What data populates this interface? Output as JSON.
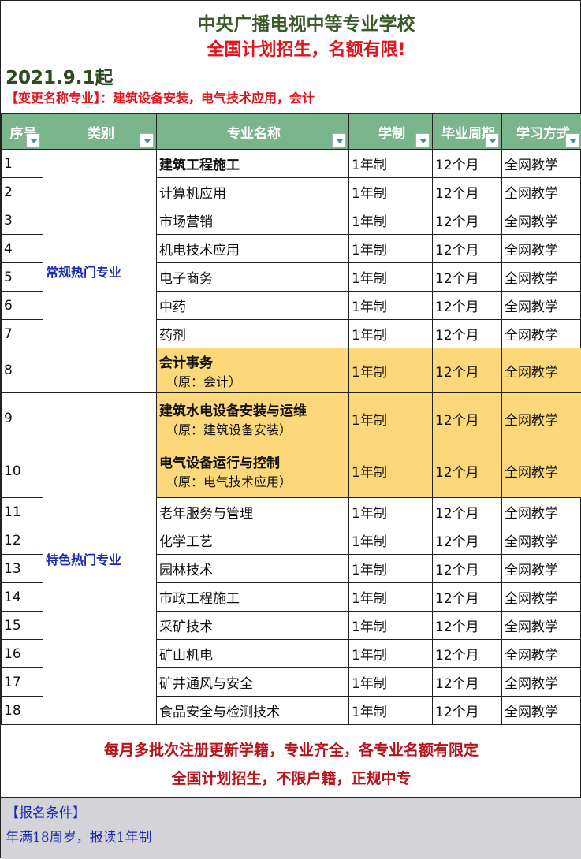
{
  "header": {
    "title": "中央广播电视中等专业学校",
    "subtitle": "全国计划招生，名额有限!",
    "date": "2021.9.1起",
    "note": "【变更名称专业】：建筑设备安装，电气技术应用，会计"
  },
  "columns": [
    "序号",
    "类别",
    "专业名称",
    "学制",
    "毕业周期",
    "学习方式"
  ],
  "categories": [
    "常规热门专业",
    "特色热门专业"
  ],
  "rows": [
    {
      "no": "1",
      "name": "建筑工程施工",
      "bold": true,
      "years": "1年制",
      "period": "12个月",
      "mode": "全网教学"
    },
    {
      "no": "2",
      "name": "计算机应用",
      "years": "1年制",
      "period": "12个月",
      "mode": "全网教学"
    },
    {
      "no": "3",
      "name": "市场营销",
      "years": "1年制",
      "period": "12个月",
      "mode": "全网教学"
    },
    {
      "no": "4",
      "name": "机电技术应用",
      "years": "1年制",
      "period": "12个月",
      "mode": "全网教学"
    },
    {
      "no": "5",
      "name": "电子商务",
      "years": "1年制",
      "period": "12个月",
      "mode": "全网教学"
    },
    {
      "no": "6",
      "name": "中药",
      "years": "1年制",
      "period": "12个月",
      "mode": "全网教学"
    },
    {
      "no": "7",
      "name": "药剂",
      "years": "1年制",
      "period": "12个月",
      "mode": "全网教学"
    },
    {
      "no": "8",
      "name": "会计事务",
      "orig": "（原：会计）",
      "highlight": true,
      "years": "1年制",
      "period": "12个月",
      "mode": "全网教学"
    },
    {
      "no": "9",
      "name": "建筑水电设备安装与运维",
      "orig": "（原：建筑设备安装）",
      "highlight": true,
      "years": "1年制",
      "period": "12个月",
      "mode": "全网教学"
    },
    {
      "no": "10",
      "name": "电气设备运行与控制",
      "orig": "（原：电气技术应用）",
      "highlight": true,
      "years": "1年制",
      "period": "12个月",
      "mode": "全网教学"
    },
    {
      "no": "11",
      "name": "老年服务与管理",
      "years": "1年制",
      "period": "12个月",
      "mode": "全网教学"
    },
    {
      "no": "12",
      "name": "化学工艺",
      "years": "1年制",
      "period": "12个月",
      "mode": "全网教学"
    },
    {
      "no": "13",
      "name": "园林技术",
      "years": "1年制",
      "period": "12个月",
      "mode": "全网教学"
    },
    {
      "no": "14",
      "name": "市政工程施工",
      "years": "1年制",
      "period": "12个月",
      "mode": "全网教学"
    },
    {
      "no": "15",
      "name": "采矿技术",
      "years": "1年制",
      "period": "12个月",
      "mode": "全网教学"
    },
    {
      "no": "16",
      "name": "矿山机电",
      "years": "1年制",
      "period": "12个月",
      "mode": "全网教学"
    },
    {
      "no": "17",
      "name": "矿井通风与安全",
      "years": "1年制",
      "period": "12个月",
      "mode": "全网教学"
    },
    {
      "no": "18",
      "name": "食品安全与检测技术",
      "years": "1年制",
      "period": "12个月",
      "mode": "全网教学"
    }
  ],
  "footer": {
    "line1": "每月多批次注册更新学籍，专业齐全，各专业名额有限定",
    "line2": "全国计划招生，不限户籍，正规中专"
  },
  "requirements": {
    "title": "【报名条件】",
    "text": "年满18周岁，报读1年制"
  },
  "colors": {
    "header_bg": "#7ab58c",
    "highlight": "#fcd87a",
    "red": "#e0141c",
    "blue": "#1a2ab0"
  }
}
